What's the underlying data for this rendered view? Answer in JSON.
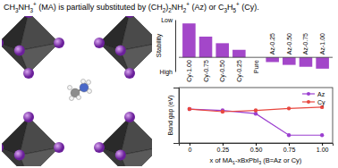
{
  "title": "CH3NH3+ (MA) is partially substituted by (CH2)2NH2+ (Az) or C3H5+ (Cy).",
  "chart_data": [
    {
      "type": "bar",
      "y_label": "Stability",
      "categories": [
        "Cy-1.00",
        "Cy-0.75",
        "Cy-0.50",
        "Cy-0.25",
        "Pure",
        "Az-0.25",
        "Az-0.50",
        "Az-0.75",
        "Az-1.00"
      ],
      "values": [
        36,
        22,
        15,
        8,
        0,
        -5,
        -8,
        -10,
        -12
      ],
      "color": "#a347c9",
      "ylim": [
        -15,
        40
      ],
      "yticks": [
        {
          "value": -15,
          "label": "High"
        },
        {
          "value": 40,
          "label": "Low"
        }
      ],
      "grid": false
    },
    {
      "type": "line",
      "x_label": "x of MA1-xBxPbI3 (B=Az or Cy)",
      "y_label": "Band gap (eV)",
      "x": [
        0,
        0.25,
        0.5,
        0.75,
        1
      ],
      "series": [
        {
          "name": "Az",
          "color": "#9b3fd0",
          "marker": "circle",
          "values": [
            1.52,
            1.5,
            1.45,
            1.12,
            1.12
          ]
        },
        {
          "name": "Cy",
          "color": "#e8473f",
          "marker": "circle",
          "values": [
            1.52,
            1.48,
            1.5,
            1.53,
            1.55
          ]
        }
      ],
      "xlim": [
        -0.08,
        1.08
      ],
      "ylim": [
        1.0,
        1.85
      ],
      "xticks": [
        0,
        0.25,
        {
          "value": 0.5,
          "label": "0.50"
        },
        0.75,
        {
          "value": 1,
          "label": "1.00"
        }
      ],
      "tick_labels": "x",
      "legend": "upper right",
      "grid": false
    }
  ]
}
